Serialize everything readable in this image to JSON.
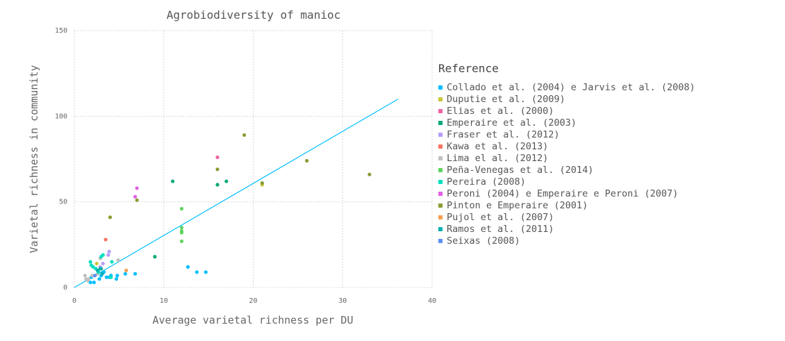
{
  "chart_data": {
    "type": "scatter",
    "title": "Agrobiodiversity of manioc",
    "xlabel": "Average varietal richness per DU",
    "ylabel": "Varietal richness in community",
    "xlim": [
      0,
      40
    ],
    "ylim": [
      0,
      150
    ],
    "xticks": [
      "0",
      "10",
      "20",
      "30",
      "40"
    ],
    "yticks": [
      "0",
      "50",
      "100",
      "150"
    ],
    "grid": true,
    "legend_position": "right",
    "legend_title": "Reference",
    "trend_line": {
      "x": [
        0,
        36.2
      ],
      "y": [
        0,
        110
      ],
      "color": "#00bfff"
    },
    "series": [
      {
        "name": "Collado et al. (2004) e Jarvis et al. (2008)",
        "color": "#00bfff",
        "points": [
          [
            1.8,
            3
          ],
          [
            2.2,
            3
          ],
          [
            2.8,
            5
          ],
          [
            3.0,
            7
          ],
          [
            3.6,
            6
          ],
          [
            3.9,
            6
          ],
          [
            4.1,
            7
          ],
          [
            4.7,
            5
          ],
          [
            4.8,
            7
          ],
          [
            5.7,
            8
          ],
          [
            6.8,
            8
          ],
          [
            12.7,
            12
          ],
          [
            13.7,
            9
          ],
          [
            14.7,
            9
          ],
          [
            1.9,
            6
          ],
          [
            3.3,
            9
          ]
        ]
      },
      {
        "name": "Duputie et al. (2009)",
        "color": "#c8c83a",
        "points": [
          [
            21.0,
            60
          ],
          [
            2.5,
            14
          ]
        ]
      },
      {
        "name": "Elias et al. (2000)",
        "color": "#f062a5",
        "points": [
          [
            16.0,
            76
          ]
        ]
      },
      {
        "name": "Emperaire et al. (2003)",
        "color": "#00a878",
        "points": [
          [
            11.0,
            62
          ],
          [
            16.0,
            60
          ],
          [
            17.0,
            62
          ],
          [
            9.0,
            18
          ],
          [
            3.0,
            11
          ]
        ]
      },
      {
        "name": "Fraser et al. (2012)",
        "color": "#b59dfa",
        "points": [
          [
            3.8,
            19
          ],
          [
            3.9,
            21
          ],
          [
            3.2,
            14
          ],
          [
            2.9,
            12
          ]
        ]
      },
      {
        "name": "Kawa et al. (2013)",
        "color": "#f87360",
        "points": [
          [
            3.5,
            28
          ]
        ]
      },
      {
        "name": "Lima el al. (2012)",
        "color": "#c0c0c0",
        "points": [
          [
            1.2,
            7
          ],
          [
            1.3,
            5
          ],
          [
            1.6,
            5
          ],
          [
            2.0,
            7
          ],
          [
            2.6,
            8
          ],
          [
            2.9,
            17
          ],
          [
            4.9,
            16
          ],
          [
            1.5,
            4
          ]
        ]
      },
      {
        "name": "Peña-Venegas et al. (2014)",
        "color": "#5fd35f",
        "points": [
          [
            12.0,
            46
          ],
          [
            12.0,
            35
          ],
          [
            12.0,
            33
          ],
          [
            12.0,
            32
          ],
          [
            12.0,
            27
          ]
        ]
      },
      {
        "name": "Pereira (2008)",
        "color": "#00e0c0",
        "points": [
          [
            1.8,
            15
          ],
          [
            1.9,
            13
          ],
          [
            2.1,
            12
          ],
          [
            2.4,
            11
          ],
          [
            3.0,
            18
          ],
          [
            3.2,
            19
          ],
          [
            4.2,
            15
          ],
          [
            2.7,
            9
          ],
          [
            4.1,
            6
          ]
        ]
      },
      {
        "name": "Peroni (2004) e Emperaire e Peroni (2007)",
        "color": "#e35fe3",
        "points": [
          [
            7.0,
            58
          ],
          [
            6.8,
            53
          ]
        ]
      },
      {
        "name": "Pinton e Emperaire (2001)",
        "color": "#8a9c34",
        "points": [
          [
            19.0,
            89
          ],
          [
            16.0,
            69
          ],
          [
            26.0,
            74
          ],
          [
            33.0,
            66
          ],
          [
            21.0,
            61
          ],
          [
            4.0,
            41
          ],
          [
            7.0,
            51
          ]
        ]
      },
      {
        "name": "Pujol et al. (2007)",
        "color": "#f8a050",
        "points": [
          [
            5.8,
            10
          ]
        ]
      },
      {
        "name": "Ramos et al. (2011)",
        "color": "#00b0b0",
        "points": [
          [
            2.9,
            11
          ],
          [
            3.1,
            8
          ],
          [
            2.6,
            10
          ]
        ]
      },
      {
        "name": "Seixas (2008)",
        "color": "#5c8df6",
        "points": [
          [
            2.3,
            7
          ]
        ]
      }
    ]
  }
}
